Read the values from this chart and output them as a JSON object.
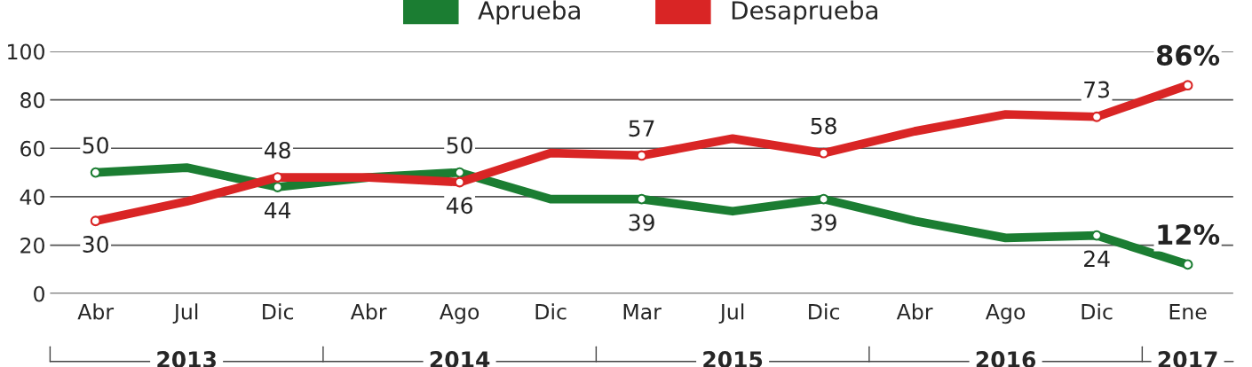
{
  "chart_data": {
    "type": "line",
    "categories": [
      "Abr",
      "Jul",
      "Dic",
      "Abr",
      "Ago",
      "Dic",
      "Mar",
      "Jul",
      "Dic",
      "Abr",
      "Ago",
      "Dic",
      "Ene"
    ],
    "series": [
      {
        "name": "Aprueba",
        "color": "#1b7d32",
        "values": [
          50,
          52,
          44,
          48,
          50,
          39,
          39,
          34,
          39,
          30,
          23,
          24,
          12
        ],
        "value_labels": [
          "50",
          null,
          "44",
          null,
          "50",
          null,
          "39",
          null,
          "39",
          null,
          null,
          "24",
          "12%"
        ]
      },
      {
        "name": "Desaprueba",
        "color": "#d92525",
        "values": [
          30,
          38,
          48,
          48,
          46,
          58,
          57,
          64,
          58,
          67,
          74,
          73,
          86
        ],
        "value_labels": [
          "30",
          null,
          "48",
          null,
          "46",
          null,
          "57",
          null,
          "58",
          null,
          null,
          "73",
          "86%"
        ]
      }
    ],
    "ylim": [
      0,
      100
    ],
    "yticks": [
      0,
      20,
      40,
      60,
      80,
      100
    ],
    "grid": "y",
    "legend": "top",
    "marker": "circle",
    "line_style": "solid",
    "annotations": [
      "2013",
      "2014",
      "2015",
      "2016",
      "2017"
    ]
  }
}
